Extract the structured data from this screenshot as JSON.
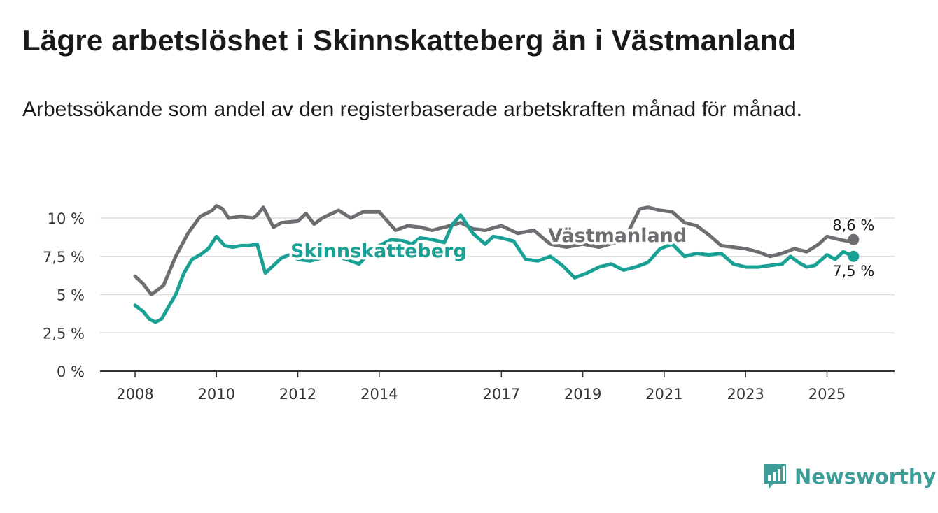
{
  "title": "Lägre arbetslöshet i Skinnskatteberg än i Västmanland",
  "subtitle": "Arbetssökande som andel av den registerbaserade arbetskraften månad för månad.",
  "brand": {
    "name": "Newsworthy",
    "color": "#3d9d98",
    "icon": "newsworthy-bar-chart-icon"
  },
  "chart_data": {
    "type": "line",
    "title": "Lägre arbetslöshet i Skinnskatteberg än i Västmanland",
    "xlabel": "",
    "ylabel": "",
    "xlim": [
      2008.0,
      2025.8
    ],
    "ylim": [
      0,
      10
    ],
    "y_ticks": [
      0,
      2.5,
      5,
      7.5,
      10
    ],
    "y_tick_labels": [
      "0 %",
      "2,5 %",
      "5 %",
      "7,5 %",
      "10 %"
    ],
    "x_ticks": [
      2008,
      2010,
      2012,
      2014,
      2017,
      2019,
      2021,
      2023,
      2025
    ],
    "x_tick_labels": [
      "2008",
      "2010",
      "2012",
      "2014",
      "2017",
      "2019",
      "2021",
      "2023",
      "2025"
    ],
    "grid": true,
    "series": [
      {
        "name": "Västmanland",
        "color": "#6d6d72",
        "end_label": "8,6 %",
        "x": [
          2008.0,
          2008.2,
          2008.4,
          2008.55,
          2008.7,
          2009.0,
          2009.3,
          2009.6,
          2009.9,
          2010.0,
          2010.15,
          2010.3,
          2010.6,
          2010.9,
          2011.0,
          2011.15,
          2011.4,
          2011.6,
          2012.0,
          2012.2,
          2012.4,
          2012.6,
          2013.0,
          2013.3,
          2013.6,
          2014.0,
          2014.2,
          2014.4,
          2014.7,
          2015.0,
          2015.3,
          2015.6,
          2016.0,
          2016.3,
          2016.6,
          2017.0,
          2017.4,
          2017.8,
          2018.2,
          2018.6,
          2019.0,
          2019.4,
          2019.8,
          2020.1,
          2020.4,
          2020.6,
          2020.9,
          2021.2,
          2021.5,
          2021.8,
          2022.1,
          2022.4,
          2022.7,
          2023.0,
          2023.3,
          2023.6,
          2023.9,
          2024.2,
          2024.5,
          2024.8,
          2025.0,
          2025.3,
          2025.5,
          2025.65
        ],
        "y": [
          6.2,
          5.7,
          5.0,
          5.3,
          5.6,
          7.5,
          9.0,
          10.1,
          10.5,
          10.8,
          10.6,
          10.0,
          10.1,
          10.0,
          10.2,
          10.7,
          9.4,
          9.7,
          9.8,
          10.3,
          9.6,
          10.0,
          10.5,
          10.0,
          10.4,
          10.4,
          9.8,
          9.2,
          9.5,
          9.4,
          9.2,
          9.4,
          9.7,
          9.3,
          9.2,
          9.5,
          9.0,
          9.2,
          8.3,
          8.1,
          8.3,
          8.1,
          8.4,
          9.0,
          10.6,
          10.7,
          10.5,
          10.4,
          9.7,
          9.5,
          8.9,
          8.2,
          8.1,
          8.0,
          7.8,
          7.5,
          7.7,
          8.0,
          7.8,
          8.3,
          8.8,
          8.6,
          8.5,
          8.6
        ]
      },
      {
        "name": "Skinnskatteberg",
        "color": "#1aa195",
        "end_label": "7,5 %",
        "x": [
          2008.0,
          2008.2,
          2008.35,
          2008.5,
          2008.65,
          2008.8,
          2009.0,
          2009.2,
          2009.4,
          2009.6,
          2009.8,
          2010.0,
          2010.2,
          2010.4,
          2010.6,
          2010.8,
          2011.0,
          2011.2,
          2011.4,
          2011.6,
          2011.8,
          2012.0,
          2012.3,
          2012.6,
          2012.9,
          2013.2,
          2013.5,
          2013.8,
          2014.0,
          2014.3,
          2014.6,
          2014.8,
          2015.0,
          2015.3,
          2015.6,
          2015.8,
          2016.0,
          2016.3,
          2016.6,
          2016.8,
          2017.0,
          2017.3,
          2017.6,
          2017.9,
          2018.2,
          2018.5,
          2018.8,
          2019.1,
          2019.4,
          2019.7,
          2020.0,
          2020.3,
          2020.6,
          2020.9,
          2021.2,
          2021.5,
          2021.8,
          2022.1,
          2022.4,
          2022.7,
          2023.0,
          2023.3,
          2023.6,
          2023.9,
          2024.1,
          2024.3,
          2024.5,
          2024.7,
          2025.0,
          2025.2,
          2025.4,
          2025.65
        ],
        "y": [
          4.3,
          3.9,
          3.4,
          3.2,
          3.4,
          4.1,
          5.0,
          6.4,
          7.3,
          7.6,
          8.0,
          8.8,
          8.2,
          8.1,
          8.2,
          8.2,
          8.3,
          6.4,
          6.9,
          7.4,
          7.6,
          7.3,
          7.2,
          7.4,
          7.5,
          7.3,
          7.0,
          7.8,
          8.2,
          8.6,
          8.5,
          8.3,
          8.7,
          8.6,
          8.4,
          9.6,
          10.2,
          9.0,
          8.3,
          8.8,
          8.7,
          8.5,
          7.3,
          7.2,
          7.5,
          6.9,
          6.1,
          6.4,
          6.8,
          7.0,
          6.6,
          6.8,
          7.1,
          8.0,
          8.3,
          7.5,
          7.7,
          7.6,
          7.7,
          7.0,
          6.8,
          6.8,
          6.9,
          7.0,
          7.5,
          7.1,
          6.8,
          6.9,
          7.6,
          7.3,
          7.8,
          7.5
        ]
      }
    ]
  }
}
